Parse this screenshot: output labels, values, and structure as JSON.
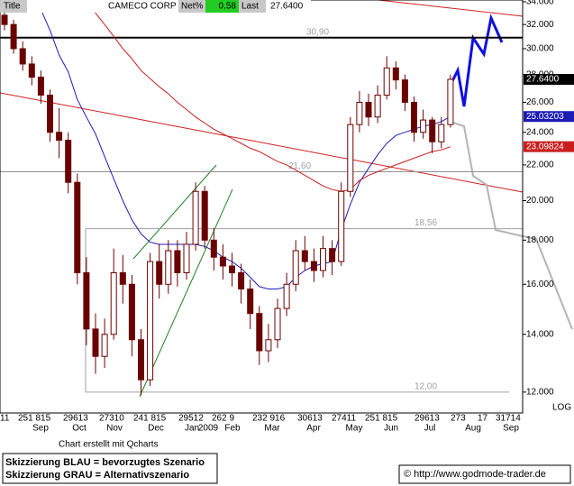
{
  "header": {
    "title": "Title",
    "symbol": "CAMECO CORP",
    "net_label": "Net%",
    "net_value": "0.58",
    "last_label": "Last",
    "last_value": "27.6400"
  },
  "chart_data": {
    "type": "candlestick",
    "log_scale": true,
    "ylim": [
      11.35,
      34.16
    ],
    "yticks": [
      {
        "value": 12,
        "label": "12.000"
      },
      {
        "value": 14,
        "label": "14.000"
      },
      {
        "value": 16,
        "label": "16.000"
      },
      {
        "value": 18,
        "label": "18.000"
      },
      {
        "value": 20,
        "label": "20.000"
      },
      {
        "value": 22,
        "label": "22.000"
      },
      {
        "value": 24,
        "label": "24.000"
      },
      {
        "value": 26,
        "label": "26.000"
      },
      {
        "value": 28,
        "label": "28.000"
      },
      {
        "value": 30,
        "label": "30.000"
      },
      {
        "value": 32,
        "label": "32.000"
      },
      {
        "value": 34,
        "label": "34.000"
      }
    ],
    "scale_label": "LOG",
    "x_day_labels": [
      "11",
      "251 815",
      "29613",
      "27310",
      "241 815",
      "29512",
      "262 9",
      "232 916",
      "30613",
      "27411",
      "251 815",
      "29613",
      "273",
      "17",
      "31714"
    ],
    "x_month_labels": [
      "Sep",
      "Oct",
      "Nov",
      "Dec",
      "Jan",
      "2009",
      "Feb",
      "Mar",
      "Apr",
      "May",
      "Jun",
      "Jul",
      "Aug",
      "Sep"
    ],
    "up_color": "#ffffff",
    "down_color": "#6b0000",
    "open": [
      32.8,
      32.0,
      30.0,
      28.8,
      27.8,
      26.5,
      24.0,
      23.5,
      21.0,
      16.5,
      14.2,
      13.2,
      14.0,
      16.5,
      16.0,
      13.8,
      12.4,
      17.0,
      16.0,
      17.5,
      16.5,
      17.8,
      20.5,
      18.0,
      17.2,
      16.8,
      16.5,
      15.8,
      14.8,
      13.4,
      13.8,
      15.0,
      16.0,
      17.5,
      17.0,
      16.6,
      17.6,
      17.0,
      20.5,
      24.5,
      26.0,
      25.0,
      26.5,
      28.5,
      27.6,
      26.0,
      24.0,
      24.8,
      23.4,
      24.5
    ],
    "high": [
      33.4,
      32.4,
      30.6,
      29.4,
      28.3,
      26.9,
      25.6,
      24.0,
      21.5,
      17.2,
      14.8,
      14.6,
      17.6,
      17.3,
      16.4,
      14.2,
      17.4,
      17.8,
      18.0,
      18.0,
      18.4,
      21.0,
      20.8,
      18.6,
      17.8,
      17.4,
      16.9,
      16.2,
      15.1,
      14.4,
      15.4,
      16.5,
      18.0,
      18.2,
      17.6,
      18.2,
      18.0,
      21.0,
      25.0,
      26.8,
      26.6,
      27.2,
      29.4,
      29.0,
      28.0,
      26.4,
      25.5,
      25.0,
      25.0,
      28.0
    ],
    "low": [
      31.5,
      29.6,
      28.3,
      27.2,
      25.9,
      23.4,
      22.4,
      20.4,
      16.0,
      13.6,
      12.6,
      12.8,
      13.8,
      15.2,
      13.2,
      11.9,
      12.2,
      15.4,
      15.6,
      15.9,
      16.2,
      17.5,
      17.6,
      16.6,
      16.2,
      15.9,
      15.2,
      14.2,
      12.9,
      13.0,
      13.5,
      14.7,
      15.7,
      16.6,
      16.1,
      16.3,
      16.4,
      16.8,
      20.2,
      24.0,
      24.4,
      24.6,
      26.2,
      26.9,
      25.4,
      23.4,
      23.6,
      22.7,
      23.0,
      24.3
    ],
    "close": [
      32.0,
      30.0,
      28.8,
      27.8,
      26.5,
      24.0,
      23.5,
      21.0,
      16.5,
      14.2,
      13.2,
      14.0,
      16.5,
      16.0,
      13.8,
      12.4,
      17.0,
      16.0,
      17.5,
      16.5,
      17.8,
      20.5,
      18.0,
      17.2,
      16.8,
      16.5,
      15.8,
      14.8,
      13.4,
      13.8,
      15.0,
      16.0,
      17.5,
      17.0,
      16.6,
      17.6,
      17.0,
      20.5,
      24.5,
      26.0,
      25.0,
      26.5,
      28.5,
      27.6,
      26.0,
      24.0,
      24.8,
      23.4,
      24.5,
      27.64
    ],
    "series": [
      {
        "color": "#1c1cb4",
        "values": [
          null,
          null,
          null,
          null,
          33.3,
          31.5,
          29.5,
          28.2,
          26.2,
          25.0,
          23.9,
          22.5,
          21.2,
          20.0,
          19.0,
          18.3,
          17.9,
          17.8,
          17.8,
          17.8,
          17.8,
          17.8,
          17.7,
          17.5,
          17.2,
          17.0,
          16.7,
          16.3,
          15.9,
          15.8,
          15.8,
          15.9,
          16.3,
          16.6,
          16.8,
          16.9,
          17.0,
          18.5,
          19.8,
          21.0,
          21.8,
          22.6,
          23.3,
          23.8,
          24.0,
          24.2,
          24.4,
          24.5,
          24.7,
          25.03203
        ]
      },
      {
        "color": "#c81e1e",
        "values": [
          null,
          null,
          null,
          null,
          null,
          null,
          null,
          null,
          null,
          34.0,
          33.0,
          32.0,
          31.0,
          30.0,
          29.2,
          28.3,
          27.7,
          27.1,
          26.6,
          26.0,
          25.5,
          25.0,
          24.6,
          24.2,
          23.9,
          23.6,
          23.3,
          23.0,
          22.8,
          22.5,
          22.2,
          22.0,
          21.7,
          21.4,
          21.1,
          20.8,
          20.6,
          20.5,
          20.6,
          21.1,
          21.4,
          21.6,
          21.8,
          22.0,
          22.2,
          22.4,
          22.6,
          22.8,
          22.9,
          23.09824
        ]
      }
    ],
    "badges": [
      {
        "value": 27.64,
        "label": "27.6400",
        "color": "#000000"
      },
      {
        "value": 25.03203,
        "label": "25.03203",
        "color": "#1c1cb4"
      },
      {
        "value": 23.09824,
        "label": "23.09824",
        "color": "#c81e1e"
      }
    ],
    "levels": [
      {
        "value": 30.9,
        "label": "30,90",
        "color": "#000000"
      },
      {
        "value": 21.6,
        "label": "21,60",
        "color": "#909090"
      },
      {
        "value": 18.56,
        "label": "18,56",
        "color": "#a0a0a0"
      },
      {
        "value": 12,
        "label": "12,00",
        "color": "#a0a0a0"
      }
    ]
  },
  "footer": {
    "credit": "Chart erstellt mit Qcharts",
    "legend": [
      "Skizzierung BLAU = bevorzugtes Szenario",
      "Skizzierung GRAU = Alternativszenario"
    ],
    "copyright": "© http://www.godmode-trader.de"
  }
}
